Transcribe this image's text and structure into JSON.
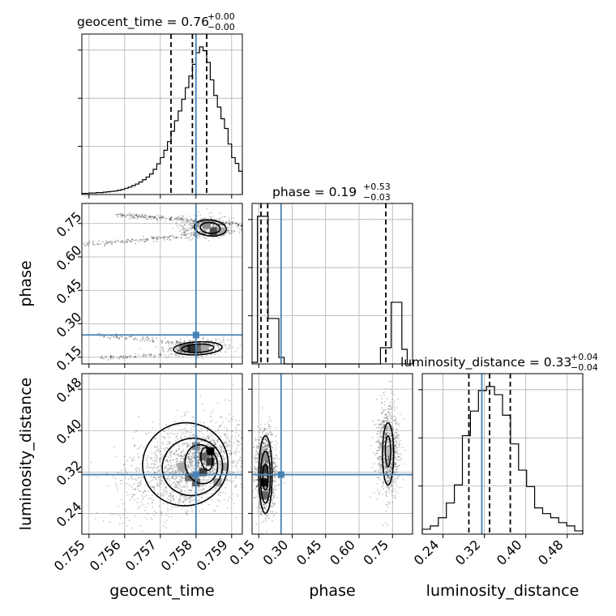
{
  "colors": {
    "truth": "#4682b4",
    "ink": "#000000",
    "grid": "#b0b0b0"
  },
  "chart_data": {
    "type": "corner",
    "grid": true,
    "parameters": [
      "geocent_time",
      "phase",
      "luminosity_distance"
    ],
    "truths": {
      "geocent_time": 0.758,
      "phase": 0.25,
      "luminosity_distance": 0.315
    },
    "axes": {
      "geocent_time": {
        "lim": [
          0.7548,
          0.7593
        ],
        "ticks": [
          "0.755",
          "0.756",
          "0.757",
          "0.758",
          "0.759"
        ],
        "tick_values": [
          0.755,
          0.756,
          0.757,
          0.758,
          0.759
        ]
      },
      "phase": {
        "lim": [
          0.12,
          0.84
        ],
        "ticks": [
          "0.15",
          "0.30",
          "0.45",
          "0.60",
          "0.75"
        ],
        "tick_values": [
          0.15,
          0.3,
          0.45,
          0.6,
          0.75
        ]
      },
      "luminosity_distance": {
        "lim": [
          0.2,
          0.51
        ],
        "ticks": [
          "0.24",
          "0.32",
          "0.40",
          "0.48"
        ],
        "tick_values": [
          0.24,
          0.32,
          0.4,
          0.48
        ]
      }
    },
    "marginals": [
      {
        "param": "geocent_time",
        "title": "geocent_time = 0.76",
        "sup": "+0.00",
        "sub": "−0.00",
        "quantiles": [
          0.7573,
          0.7579,
          0.7583
        ],
        "bin_edges": [
          0.7548,
          0.7549,
          0.755,
          0.7551,
          0.7552,
          0.7553,
          0.7554,
          0.7555,
          0.7556,
          0.7557,
          0.7558,
          0.7559,
          0.756,
          0.7561,
          0.7562,
          0.7563,
          0.7564,
          0.7565,
          0.7566,
          0.7567,
          0.7568,
          0.7569,
          0.757,
          0.7571,
          0.7572,
          0.7573,
          0.7574,
          0.7575,
          0.7576,
          0.7577,
          0.7578,
          0.7579,
          0.758,
          0.7581,
          0.7582,
          0.7583,
          0.7584,
          0.7585,
          0.7586,
          0.7587,
          0.7588,
          0.7589,
          0.759,
          0.7591,
          0.7592,
          0.7593
        ],
        "counts": [
          0.3,
          0.3,
          0.4,
          0.4,
          0.5,
          0.5,
          0.6,
          0.7,
          0.8,
          0.9,
          1.1,
          1.3,
          1.6,
          1.9,
          2.3,
          2.7,
          3.2,
          3.8,
          4.5,
          5.3,
          6.5,
          7.9,
          9.5,
          11.4,
          13.6,
          16.3,
          19.0,
          21.5,
          24.5,
          27.5,
          30.5,
          33.5,
          36.5,
          38.0,
          37.0,
          34.0,
          29.5,
          25.5,
          22.5,
          19.5,
          17.0,
          13.0,
          9.5,
          8.0,
          6.0
        ]
      },
      {
        "param": "phase",
        "title": "phase = 0.19",
        "sup": "+0.53",
        "sub": "−0.03",
        "quantiles": [
          0.16,
          0.19,
          0.72
        ],
        "bin_edges": [
          0.12,
          0.144,
          0.168,
          0.192,
          0.216,
          0.24,
          0.264,
          0.288,
          0.312,
          0.336,
          0.36,
          0.384,
          0.408,
          0.432,
          0.456,
          0.48,
          0.504,
          0.528,
          0.552,
          0.576,
          0.6,
          0.624,
          0.648,
          0.672,
          0.696,
          0.72,
          0.744,
          0.768,
          0.792,
          0.816,
          0.84
        ],
        "counts": [
          2,
          182,
          182,
          56,
          56,
          8,
          0,
          0,
          0,
          0,
          0,
          0,
          0,
          0,
          0,
          0,
          0,
          0,
          0,
          0,
          0,
          0,
          0,
          0,
          20,
          20,
          76,
          76,
          18,
          0
        ]
      },
      {
        "param": "luminosity_distance",
        "title": "luminosity_distance = 0.33",
        "sup": "+0.04",
        "sub": "−0.04",
        "quantiles": [
          0.29,
          0.33,
          0.37
        ],
        "bin_edges": [
          0.2,
          0.2155,
          0.231,
          0.2465,
          0.262,
          0.2775,
          0.293,
          0.3085,
          0.324,
          0.3395,
          0.355,
          0.3705,
          0.386,
          0.4015,
          0.417,
          0.4325,
          0.448,
          0.4635,
          0.479,
          0.4945,
          0.51
        ],
        "counts": [
          0.6,
          1.0,
          2.0,
          3.8,
          6.0,
          12.0,
          15.0,
          17.5,
          18.0,
          17.0,
          14.5,
          11.0,
          7.8,
          5.8,
          3.2,
          2.5,
          2.0,
          1.4,
          1.0,
          0.4
        ]
      }
    ],
    "joint": [
      {
        "x": "geocent_time",
        "y": "phase",
        "clusters": [
          {
            "center": [
              0.758,
              0.195
            ],
            "std": [
              0.00045,
              0.018
            ],
            "rho": 0.2,
            "n": 380
          },
          {
            "center": [
              0.7583,
              0.735
            ],
            "std": [
              0.0004,
              0.025
            ],
            "rho": 0.1,
            "n": 420
          }
        ],
        "streaks": [
          {
            "from": [
              0.7558,
              0.79
            ],
            "to": [
              0.7593,
              0.745
            ],
            "n": 220
          },
          {
            "from": [
              0.7548,
              0.655
            ],
            "to": [
              0.7593,
              0.715
            ],
            "n": 200
          },
          {
            "from": [
              0.7552,
              0.25
            ],
            "to": [
              0.7583,
              0.205
            ],
            "n": 120
          },
          {
            "from": [
              0.7553,
              0.145
            ],
            "to": [
              0.7585,
              0.175
            ],
            "n": 110
          }
        ],
        "levels": [
          {
            "center": [
              0.75805,
              0.19
            ],
            "radii": [
              0.00045,
              0.019
            ],
            "rotation": 0.05
          },
          {
            "center": [
              0.75805,
              0.19
            ],
            "radii": [
              0.00068,
              0.029
            ],
            "rotation": 0.05
          },
          {
            "center": [
              0.7584,
              0.73
            ],
            "radii": [
              0.00028,
              0.024
            ],
            "rotation": -0.1
          },
          {
            "center": [
              0.7584,
              0.73
            ],
            "radii": [
              0.00045,
              0.036
            ],
            "rotation": -0.1
          }
        ],
        "density_cells": [
          {
            "xy": [
              0.75785,
              0.19
            ],
            "level": 0.95
          },
          {
            "xy": [
              0.75775,
              0.19
            ],
            "level": 0.9
          },
          {
            "xy": [
              0.75795,
              0.19
            ],
            "level": 0.8
          },
          {
            "xy": [
              0.7581,
              0.19
            ],
            "level": 0.6
          },
          {
            "xy": [
              0.75765,
              0.19
            ],
            "level": 0.55
          },
          {
            "xy": [
              0.75825,
              0.19
            ],
            "level": 0.35
          },
          {
            "xy": [
              0.7585,
              0.715
            ],
            "level": 0.7
          },
          {
            "xy": [
              0.7583,
              0.745
            ],
            "level": 0.45
          },
          {
            "xy": [
              0.7587,
              0.715
            ],
            "level": 0.35
          }
        ]
      },
      {
        "x": "geocent_time",
        "y": "luminosity_distance",
        "clusters": [
          {
            "center": [
              0.7578,
              0.33
            ],
            "std": [
              0.0009,
              0.045
            ],
            "rho": 0.35,
            "n": 1600
          },
          {
            "center": [
              0.7583,
              0.35
            ],
            "std": [
              0.00035,
              0.02
            ],
            "rho": 0.3,
            "n": 300
          }
        ],
        "streaks": [],
        "levels": [
          {
            "center": [
              0.7583,
              0.345
            ],
            "radii": [
              0.00016,
              0.022
            ],
            "rotation": 0.15
          },
          {
            "center": [
              0.75815,
              0.335
            ],
            "radii": [
              0.00045,
              0.038
            ],
            "rotation": 0.25
          },
          {
            "center": [
              0.7579,
              0.33
            ],
            "radii": [
              0.00085,
              0.055
            ],
            "rotation": 0.3
          },
          {
            "center": [
              0.7577,
              0.335
            ],
            "radii": [
              0.0012,
              0.08
            ],
            "rotation": 0.3
          }
        ],
        "density_cells": [
          {
            "xy": [
              0.7584,
              0.36
            ],
            "level": 1.0
          },
          {
            "xy": [
              0.7584,
              0.34
            ],
            "level": 0.8
          },
          {
            "xy": [
              0.7582,
              0.32
            ],
            "level": 0.75
          },
          {
            "xy": [
              0.758,
              0.3
            ],
            "level": 0.6
          },
          {
            "xy": [
              0.7578,
              0.31
            ],
            "level": 0.55
          },
          {
            "xy": [
              0.7582,
              0.35
            ],
            "level": 0.6
          },
          {
            "xy": [
              0.7586,
              0.3
            ],
            "level": 0.4
          },
          {
            "xy": [
              0.7588,
              0.33
            ],
            "level": 0.35
          },
          {
            "xy": [
              0.7576,
              0.33
            ],
            "level": 0.35
          },
          {
            "xy": [
              0.758,
              0.37
            ],
            "level": 0.45
          }
        ]
      },
      {
        "x": "phase",
        "y": "luminosity_distance",
        "clusters": [
          {
            "center": [
              0.18,
              0.32
            ],
            "std": [
              0.022,
              0.04
            ],
            "rho": 0.0,
            "n": 1100
          },
          {
            "center": [
              0.73,
              0.36
            ],
            "std": [
              0.025,
              0.045
            ],
            "rho": 0.0,
            "n": 900
          }
        ],
        "streaks": [],
        "levels": [
          {
            "center": [
              0.18,
              0.31
            ],
            "radii": [
              0.012,
              0.025
            ],
            "rotation": 0
          },
          {
            "center": [
              0.18,
              0.31
            ],
            "radii": [
              0.022,
              0.05
            ],
            "rotation": 0
          },
          {
            "center": [
              0.18,
              0.315
            ],
            "radii": [
              0.03,
              0.075
            ],
            "rotation": 0
          },
          {
            "center": [
              0.73,
              0.36
            ],
            "radii": [
              0.012,
              0.03
            ],
            "rotation": 0
          },
          {
            "center": [
              0.73,
              0.355
            ],
            "radii": [
              0.025,
              0.06
            ],
            "rotation": 0
          }
        ],
        "density_cells": [
          {
            "xy": [
              0.175,
              0.3
            ],
            "level": 0.95
          },
          {
            "xy": [
              0.175,
              0.325
            ],
            "level": 0.75
          },
          {
            "xy": [
              0.175,
              0.275
            ],
            "level": 0.6
          },
          {
            "xy": [
              0.175,
              0.35
            ],
            "level": 0.45
          },
          {
            "xy": [
              0.73,
              0.36
            ],
            "level": 0.25
          }
        ]
      }
    ]
  }
}
